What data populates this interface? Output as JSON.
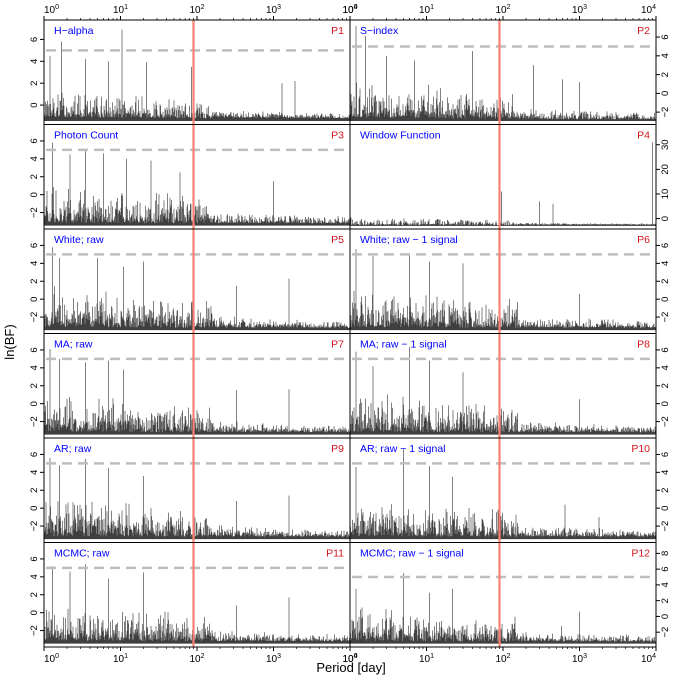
{
  "figure": {
    "y_axis_title": "ln(BF)",
    "x_axis_title": "Period [day]",
    "x_ticks": [
      "10^0",
      "10^1",
      "10^2",
      "10^3",
      "10^4"
    ],
    "line_color": "#000000",
    "threshold_color": "#bebebe",
    "marker_color": "#fa8072",
    "label_color": "#0000ff",
    "id_color": "#d2141e"
  },
  "chart_data": [
    {
      "id": "P1",
      "title": "H−alpha",
      "type": "line",
      "xscale": "log",
      "xlim": [
        1,
        10000
      ],
      "ylim": [
        -1.5,
        7.5
      ],
      "yticks": [
        0,
        2,
        4,
        6
      ],
      "threshold": 5,
      "marker_period": 90,
      "peaks": [
        [
          1.7,
          5.8
        ],
        [
          10.5,
          6.9
        ],
        [
          1.2,
          4.5
        ],
        [
          3.5,
          4.2
        ],
        [
          7.0,
          4.0
        ],
        [
          22,
          3.9
        ],
        [
          85,
          3.5
        ],
        [
          1300,
          2.0
        ],
        [
          1900,
          2.2
        ]
      ]
    },
    {
      "id": "P2",
      "title": "S−index",
      "type": "line",
      "xscale": "log",
      "xlim": [
        1,
        10000
      ],
      "ylim": [
        -3,
        7.5
      ],
      "yticks": [
        -2,
        0,
        2,
        4,
        6
      ],
      "threshold": 5,
      "marker_period": 90,
      "peaks": [
        [
          1.2,
          7.2
        ],
        [
          1.6,
          6.1
        ],
        [
          3.0,
          4.0
        ],
        [
          7.0,
          3.5
        ],
        [
          40,
          4.5
        ],
        [
          250,
          3.0
        ],
        [
          600,
          1.5
        ],
        [
          1000,
          1.2
        ]
      ]
    },
    {
      "id": "P3",
      "title": "Photon Count",
      "type": "line",
      "xscale": "log",
      "xlim": [
        1,
        10000
      ],
      "ylim": [
        -3.5,
        7.5
      ],
      "yticks": [
        -2,
        0,
        2,
        4,
        6
      ],
      "threshold": 5,
      "marker_period": 90,
      "peaks": [
        [
          1.3,
          5.8
        ],
        [
          2.2,
          4.5
        ],
        [
          3.5,
          5.0
        ],
        [
          6.0,
          4.6
        ],
        [
          12,
          4.0
        ],
        [
          25,
          3.8
        ],
        [
          60,
          2.5
        ],
        [
          1000,
          1.5
        ],
        [
          10000,
          3.7
        ]
      ]
    },
    {
      "id": "P4",
      "title": "Window Function",
      "type": "line",
      "xscale": "log",
      "xlim": [
        1,
        10000
      ],
      "ylim": [
        -3,
        37
      ],
      "yticks": [
        0,
        10,
        20,
        30
      ],
      "threshold": null,
      "marker_period": 90,
      "peaks": [
        [
          95,
          11
        ],
        [
          300,
          7
        ],
        [
          450,
          6
        ],
        [
          9000,
          31
        ]
      ]
    },
    {
      "id": "P5",
      "title": "White; raw",
      "type": "line",
      "xscale": "log",
      "xlim": [
        1,
        10000
      ],
      "ylim": [
        -3.5,
        7.5
      ],
      "yticks": [
        -2,
        0,
        2,
        4,
        6
      ],
      "threshold": 5,
      "marker_period": 90,
      "peaks": [
        [
          1.3,
          5.8
        ],
        [
          1.6,
          4.6
        ],
        [
          5.0,
          4.6
        ],
        [
          11,
          3.6
        ],
        [
          20,
          4.2
        ],
        [
          88,
          6.2
        ],
        [
          330,
          1.5
        ],
        [
          1600,
          2.3
        ]
      ]
    },
    {
      "id": "P6",
      "title": "White; raw − 1 signal",
      "type": "line",
      "xscale": "log",
      "xlim": [
        1,
        10000
      ],
      "ylim": [
        -3.5,
        7.5
      ],
      "yticks": [
        -2,
        0,
        2,
        4,
        6
      ],
      "threshold": 5,
      "marker_period": 90,
      "peaks": [
        [
          1.2,
          5.6
        ],
        [
          2.0,
          4.8
        ],
        [
          6.0,
          5.0
        ],
        [
          11,
          4.2
        ],
        [
          30,
          4.0
        ],
        [
          90,
          4.3
        ],
        [
          1000,
          0.6
        ]
      ]
    },
    {
      "id": "P7",
      "title": "MA; raw",
      "type": "line",
      "xscale": "log",
      "xlim": [
        1,
        10000
      ],
      "ylim": [
        -3.5,
        7.5
      ],
      "yticks": [
        -2,
        0,
        2,
        4,
        6
      ],
      "threshold": 5,
      "marker_period": 90,
      "peaks": [
        [
          1.2,
          6.1
        ],
        [
          1.6,
          5.0
        ],
        [
          3.5,
          4.6
        ],
        [
          7.0,
          4.8
        ],
        [
          11,
          3.8
        ],
        [
          88,
          6.2
        ],
        [
          330,
          1.5
        ],
        [
          1600,
          1.6
        ]
      ]
    },
    {
      "id": "P8",
      "title": "MA; raw − 1 signal",
      "type": "line",
      "xscale": "log",
      "xlim": [
        1,
        10000
      ],
      "ylim": [
        -3.5,
        7.5
      ],
      "yticks": [
        -2,
        0,
        2,
        4,
        6
      ],
      "threshold": 5,
      "marker_period": 90,
      "peaks": [
        [
          1.2,
          5.8
        ],
        [
          2.0,
          4.2
        ],
        [
          6.0,
          6.3
        ],
        [
          11,
          4.8
        ],
        [
          30,
          3.5
        ],
        [
          90,
          4.0
        ],
        [
          1000,
          0.5
        ]
      ]
    },
    {
      "id": "P9",
      "title": "AR; raw",
      "type": "line",
      "xscale": "log",
      "xlim": [
        1,
        10000
      ],
      "ylim": [
        -3.5,
        7.5
      ],
      "yticks": [
        -2,
        0,
        2,
        4,
        6
      ],
      "threshold": 5,
      "marker_period": 90,
      "peaks": [
        [
          1.2,
          5.6
        ],
        [
          1.6,
          4.8
        ],
        [
          3.5,
          5.5
        ],
        [
          7.0,
          4.5
        ],
        [
          20,
          3.6
        ],
        [
          88,
          6.2
        ],
        [
          330,
          0.8
        ],
        [
          1600,
          1.4
        ]
      ]
    },
    {
      "id": "P10",
      "title": "AR; raw − 1 signal",
      "type": "line",
      "xscale": "log",
      "xlim": [
        1,
        10000
      ],
      "ylim": [
        -3.5,
        7.5
      ],
      "yticks": [
        -2,
        0,
        2,
        4,
        6
      ],
      "threshold": 5,
      "marker_period": 90,
      "peaks": [
        [
          1.2,
          4.6
        ],
        [
          5.0,
          6.6
        ],
        [
          11,
          4.7
        ],
        [
          22,
          3.5
        ],
        [
          90,
          2.8
        ],
        [
          650,
          0.4
        ],
        [
          1800,
          -1.0
        ]
      ]
    },
    {
      "id": "P11",
      "title": "MCMC; raw",
      "type": "line",
      "xscale": "log",
      "xlim": [
        1,
        10000
      ],
      "ylim": [
        -3.5,
        7.5
      ],
      "yticks": [
        -2,
        0,
        2,
        4,
        6
      ],
      "threshold": 5,
      "marker_period": 90,
      "peaks": [
        [
          1.3,
          5.2
        ],
        [
          2.2,
          4.6
        ],
        [
          3.5,
          5.4
        ],
        [
          7.0,
          3.8
        ],
        [
          20,
          4.5
        ],
        [
          88,
          6.1
        ],
        [
          330,
          0.8
        ],
        [
          1600,
          1.7
        ]
      ]
    },
    {
      "id": "P12",
      "title": "MCMC; raw − 1 signal",
      "type": "line",
      "xscale": "log",
      "xlim": [
        1,
        10000
      ],
      "ylim": [
        -3.5,
        9
      ],
      "yticks": [
        -2,
        0,
        2,
        4,
        6,
        8
      ],
      "threshold": 5,
      "marker_period": 90,
      "peaks": [
        [
          1.2,
          3.5
        ],
        [
          5.0,
          5.5
        ],
        [
          11,
          3.0
        ],
        [
          22,
          3.5
        ],
        [
          90,
          3.8
        ],
        [
          580,
          -1.2
        ],
        [
          1000,
          0.6
        ]
      ]
    }
  ]
}
